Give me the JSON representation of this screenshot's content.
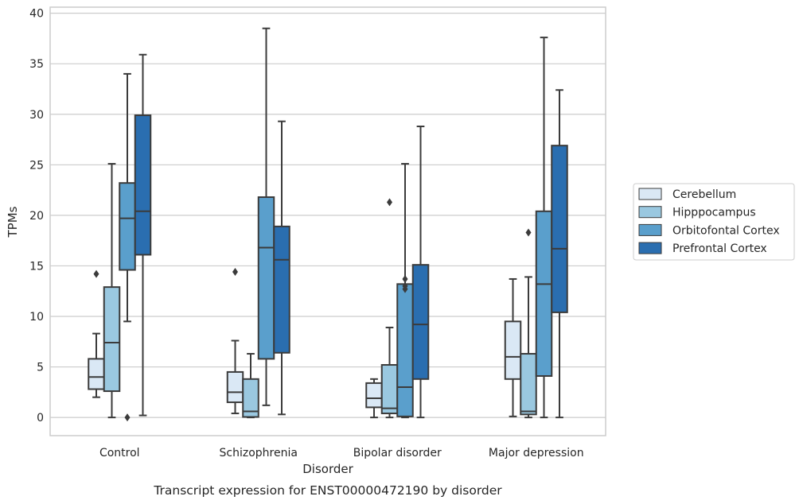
{
  "chart_data": {
    "type": "boxplot",
    "xlabel": "Disorder",
    "ylabel": "TPMs",
    "caption": "Transcript expression for ENST00000472190 by disorder",
    "ylim": [
      -1.8,
      40.6
    ],
    "yticks": [
      0,
      5,
      10,
      15,
      20,
      25,
      30,
      35,
      40
    ],
    "grid": "horizontal",
    "legend_position": "right",
    "categories": [
      "Control",
      "Schizophrenia",
      "Bipolar disorder",
      "Major depression"
    ],
    "series": [
      {
        "name": "Cerebellum",
        "color": "#dae8f5",
        "boxes": [
          {
            "whislo": 2.0,
            "q1": 2.8,
            "med": 4.0,
            "q3": 5.8,
            "whishi": 8.3,
            "fliers": [
              14.2
            ]
          },
          {
            "whislo": 0.4,
            "q1": 1.5,
            "med": 2.5,
            "q3": 4.5,
            "whishi": 7.6,
            "fliers": [
              14.4
            ]
          },
          {
            "whislo": 0.0,
            "q1": 1.0,
            "med": 1.9,
            "q3": 3.4,
            "whishi": 3.8,
            "fliers": []
          },
          {
            "whislo": 0.1,
            "q1": 3.8,
            "med": 6.0,
            "q3": 9.5,
            "whishi": 13.7,
            "fliers": []
          }
        ]
      },
      {
        "name": "Hipppocampus",
        "color": "#9ac8e0",
        "boxes": [
          {
            "whislo": 0.0,
            "q1": 2.6,
            "med": 7.4,
            "q3": 12.9,
            "whishi": 25.1,
            "fliers": []
          },
          {
            "whislo": 0.0,
            "q1": 0.05,
            "med": 0.6,
            "q3": 3.8,
            "whishi": 6.3,
            "fliers": []
          },
          {
            "whislo": 0.0,
            "q1": 0.4,
            "med": 0.9,
            "q3": 5.2,
            "whishi": 8.9,
            "fliers": [
              21.3
            ]
          },
          {
            "whislo": 0.0,
            "q1": 0.3,
            "med": 0.6,
            "q3": 6.3,
            "whishi": 13.9,
            "fliers": [
              18.3
            ]
          }
        ]
      },
      {
        "name": "Orbitofontal Cortex",
        "color": "#5a9fcc",
        "boxes": [
          {
            "whislo": 9.5,
            "q1": 14.6,
            "med": 19.7,
            "q3": 23.2,
            "whishi": 34.0,
            "fliers": [
              0.0
            ]
          },
          {
            "whislo": 1.2,
            "q1": 5.8,
            "med": 16.8,
            "q3": 21.8,
            "whishi": 38.5,
            "fliers": []
          },
          {
            "whislo": 0.0,
            "q1": 0.1,
            "med": 3.0,
            "q3": 13.2,
            "whishi": 25.1,
            "fliers": [
              12.7,
              13.0,
              13.7
            ]
          },
          {
            "whislo": 0.0,
            "q1": 4.1,
            "med": 13.2,
            "q3": 20.4,
            "whishi": 37.6,
            "fliers": []
          }
        ]
      },
      {
        "name": "Prefrontal Cortex",
        "color": "#2a6eb0",
        "boxes": [
          {
            "whislo": 0.2,
            "q1": 16.1,
            "med": 20.4,
            "q3": 29.9,
            "whishi": 35.9,
            "fliers": []
          },
          {
            "whislo": 0.3,
            "q1": 6.4,
            "med": 15.6,
            "q3": 18.9,
            "whishi": 29.3,
            "fliers": []
          },
          {
            "whislo": 0.0,
            "q1": 3.8,
            "med": 9.2,
            "q3": 15.1,
            "whishi": 28.8,
            "fliers": []
          },
          {
            "whislo": 0.0,
            "q1": 10.4,
            "med": 16.7,
            "q3": 26.9,
            "whishi": 32.4,
            "fliers": []
          }
        ]
      }
    ]
  }
}
